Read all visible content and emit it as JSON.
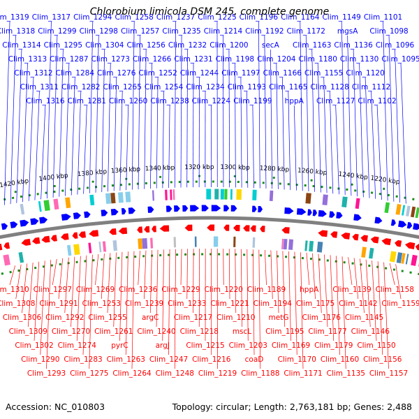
{
  "title": "Chlorobium limicola DSM 245, complete genome",
  "footer": {
    "accession": "Accession: NC_010803",
    "summary": "Topology: circular; Length: 2,763,181 bp; Genes: 2,488"
  },
  "colors": {
    "forward": "#0000ff",
    "reverse": "#ff0000",
    "backbone": "#808080",
    "tick": "#1a8c1a",
    "cog_palette": [
      "#00ced1",
      "#ff69b4",
      "#32cd32",
      "#9370db",
      "#ffa500",
      "#4682b4",
      "#ff1493",
      "#20b2aa",
      "#b0c4de",
      "#90ee90",
      "#ffd700",
      "#8b4513",
      "#87ceeb",
      "#c0c0c0"
    ]
  },
  "scale_labels": [
    "1420 kbp",
    "1400 kbp",
    "1380 kbp",
    "1360 kbp",
    "1340 kbp",
    "1320 kbp",
    "1300 kbp",
    "1280 kbp",
    "1260 kbp",
    "1240 kbp",
    "1220 kbp"
  ],
  "forward_labels": [
    "Clim_1319",
    "Clim_1318",
    "Clim_1314",
    "Clim_1313",
    "Clim_1312",
    "Clim_1311",
    "Clim_1316",
    "Clim_1317",
    "Clim_1299",
    "Clim_1295",
    "Clim_1287",
    "Clim_1284",
    "Clim_1282",
    "Clim_1281",
    "Clim_1294",
    "Clim_1298",
    "Clim_1304",
    "Clim_1273",
    "Clim_1276",
    "Clim_1265",
    "Clim_1260",
    "Clim_1258",
    "Clim_1257",
    "Clim_1256",
    "Clim_1266",
    "Clim_1252",
    "Clim_1254",
    "Clim_1238",
    "Clim_1237",
    "Clim_1235",
    "Clim_1232",
    "Clim_1231",
    "Clim_1244",
    "Clim_1234",
    "Clim_1224",
    "Clim_1225",
    "Clim_1214",
    "Clim_1200",
    "Clim_1198",
    "Clim_1197",
    "Clim_1193",
    "Clim_1199",
    "Clim_1196",
    "Clim_1192",
    "secA",
    "Clim_1204",
    "Clim_1166",
    "Clim_1165",
    "hppA",
    "Clim_1164",
    "Clim_1172",
    "Clim_1163",
    "Clim_1180",
    "Clim_1155",
    "Clim_1128",
    "Clim_1127",
    "Clim_1149",
    "mgsA",
    "Clim_1136",
    "Clim_1130",
    "Clim_1120",
    "Clim_1112",
    "Clim_1102",
    "Clim_1101",
    "Clim_1098",
    "Clim_1096",
    "Clim_1095"
  ],
  "reverse_labels": [
    "Clim_1310",
    "Clim_1308",
    "Clim_1306",
    "Clim_1309",
    "Clim_1302",
    "Clim_1290",
    "Clim_1293",
    "Clim_1297",
    "Clim_1291",
    "Clim_1292",
    "Clim_1270",
    "Clim_1274",
    "Clim_1283",
    "Clim_1275",
    "Clim_1269",
    "Clim_1253",
    "Clim_1255",
    "Clim_1261",
    "pyrC",
    "Clim_1263",
    "Clim_1264",
    "Clim_1236",
    "Clim_1239",
    "argC",
    "Clim_1240",
    "argJ",
    "Clim_1247",
    "Clim_1248",
    "Clim_1229",
    "Clim_1233",
    "Clim_1217",
    "Clim_1218",
    "Clim_1215",
    "Clim_1216",
    "Clim_1219",
    "Clim_1220",
    "Clim_1221",
    "Clim_1210",
    "mscL",
    "Clim_1203",
    "coaD",
    "Clim_1188",
    "Clim_1189",
    "Clim_1194",
    "metG",
    "Clim_1195",
    "Clim_1169",
    "Clim_1170",
    "Clim_1171",
    "hppA",
    "Clim_1175",
    "Clim_1176",
    "Clim_1177",
    "Clim_1179",
    "Clim_1160",
    "Clim_1135",
    "Clim_1139",
    "Clim_1142",
    "Clim_1145",
    "Clim_1146",
    "Clim_1150",
    "Clim_1156",
    "Clim_1157",
    "Clim_1158",
    "Clim_1159"
  ]
}
